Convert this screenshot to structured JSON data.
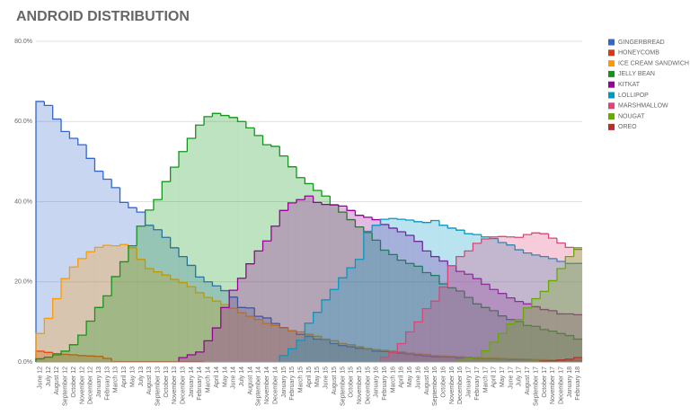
{
  "chart_data": {
    "type": "step-area",
    "title": "ANDROID DISTRIBUTION",
    "categories": [
      "June 12",
      "July 12",
      "August 12",
      "September 12",
      "October 12",
      "November 12",
      "December 12",
      "January 13",
      "February 13",
      "March 13",
      "April 13",
      "May 13",
      "July 13",
      "August 13",
      "September 13",
      "October 13",
      "November 13",
      "December 13",
      "January 14",
      "February 14",
      "March 14",
      "April 14",
      "May 14",
      "June 14",
      "July 14",
      "August 14",
      "September 14",
      "November 14",
      "December 14",
      "January 15",
      "February 15",
      "March 15",
      "April 15",
      "May 15",
      "June 15",
      "August 15",
      "September 15",
      "October 15",
      "November 15",
      "December 15",
      "January 16",
      "February 16",
      "March 16",
      "April 16",
      "May 16",
      "June 16",
      "August 16",
      "September 16",
      "October 16",
      "November 16",
      "December 16",
      "January 17",
      "February 17",
      "March 17",
      "April 17",
      "May 17",
      "June 17",
      "July 17",
      "August 17",
      "September 17",
      "October 17",
      "November 17",
      "December 17",
      "January 18",
      "February 18"
    ],
    "series": [
      {
        "name": "GINGERBREAD",
        "color": "#3366cc",
        "values": [
          65,
          64,
          60.6,
          57.5,
          55.8,
          54.2,
          50.8,
          47.6,
          45.6,
          43.5,
          39.8,
          38.5,
          37.4,
          34.1,
          33.0,
          31.1,
          28.5,
          26.3,
          24.1,
          21.2,
          20.0,
          19.0,
          17.8,
          16.2,
          13.6,
          13.5,
          11.4,
          11.0,
          9.6,
          8.6,
          7.8,
          6.9,
          6.4,
          5.7,
          5.6,
          4.6,
          4.1,
          3.8,
          3.4,
          3.3,
          2.7,
          2.6,
          2.4,
          2.2,
          2.0,
          1.7,
          1.5,
          1.3,
          1.3,
          1.2,
          1.0,
          1.0,
          0.9,
          0.8,
          0.8,
          0.7,
          0.6,
          0.6,
          0.5,
          0.5,
          0.4,
          0.4,
          0.3,
          0.3,
          0.3
        ]
      },
      {
        "name": "HONEYCOMB",
        "color": "#dc3912",
        "values": [
          2.7,
          2.4,
          2.1,
          1.9,
          1.8,
          1.6,
          1.5,
          1.4,
          0.9,
          0.1,
          0.1,
          0.1,
          0.1,
          0.1,
          0.1,
          0.1,
          0.1,
          0.1,
          0.1,
          0.1,
          null,
          null,
          null,
          null,
          null,
          null,
          null,
          null,
          null,
          null,
          null,
          null,
          null,
          null,
          null,
          null,
          null,
          null,
          null,
          null,
          null,
          null,
          null,
          null,
          null,
          null,
          null,
          null,
          null,
          null,
          null,
          null,
          null,
          null,
          null,
          null,
          null,
          null,
          null,
          null,
          null,
          null,
          null,
          null,
          null
        ]
      },
      {
        "name": "ICE CREAM SANDWICH",
        "color": "#ff9900",
        "values": [
          7.1,
          10.9,
          15.8,
          20.8,
          23.7,
          25.8,
          27.5,
          28.6,
          29.1,
          29.0,
          29.3,
          28.5,
          25.6,
          23.3,
          22.5,
          21.7,
          20.6,
          19.8,
          18.8,
          17.3,
          16.1,
          15.2,
          14.3,
          13.4,
          12.3,
          11.4,
          10.6,
          9.6,
          9.1,
          8.5,
          7.8,
          7.5,
          6.9,
          6.4,
          5.7,
          5.3,
          4.6,
          4.3,
          3.8,
          3.2,
          3.1,
          2.9,
          2.7,
          2.5,
          2.2,
          2.0,
          1.9,
          1.6,
          1.5,
          1.4,
          1.3,
          1.2,
          1.1,
          1.0,
          1.0,
          0.9,
          0.8,
          0.8,
          0.7,
          0.6,
          0.6,
          0.5,
          0.5,
          0.4,
          0.4
        ]
      },
      {
        "name": "JELLY BEAN",
        "color": "#109618",
        "values": [
          0.8,
          1.2,
          1.8,
          2.7,
          4.3,
          6.7,
          10.2,
          13.6,
          16.5,
          21.3,
          25.0,
          29.0,
          33.9,
          37.9,
          40.5,
          45.0,
          48.6,
          52.5,
          55.8,
          59.1,
          61.2,
          62.0,
          61.5,
          61.0,
          60.0,
          58.4,
          56.5,
          54.2,
          53.8,
          51.4,
          48.7,
          46.0,
          44.5,
          42.8,
          41.4,
          39.2,
          37.4,
          35.5,
          33.7,
          32.3,
          30.4,
          27.9,
          26.8,
          25.4,
          24.6,
          23.9,
          22.3,
          21.6,
          19.5,
          18.5,
          17.7,
          16.1,
          14.5,
          13.6,
          12.8,
          11.5,
          10.6,
          10.1,
          9.1,
          8.9,
          8.1,
          7.7,
          7.1,
          6.6,
          5.7
        ]
      },
      {
        "name": "KITKAT",
        "color": "#990099",
        "values": [
          null,
          null,
          null,
          null,
          null,
          null,
          null,
          null,
          null,
          null,
          null,
          null,
          null,
          null,
          null,
          null,
          null,
          1.1,
          1.8,
          2.5,
          5.3,
          8.5,
          13.6,
          17.9,
          20.9,
          24.5,
          27.7,
          30.2,
          33.9,
          37.8,
          39.7,
          40.5,
          41.4,
          39.8,
          39.3,
          39.2,
          38.9,
          37.8,
          36.6,
          36.1,
          35.5,
          34.3,
          33.4,
          32.5,
          31.6,
          30.1,
          27.7,
          26.3,
          25.2,
          24.0,
          22.6,
          21.9,
          20.8,
          19.4,
          18.1,
          17.1,
          16.0,
          15.1,
          14.5,
          13.8,
          13.1,
          12.8,
          12.0,
          12.0,
          11.8
        ]
      },
      {
        "name": "LOLLIPOP",
        "color": "#0099c6",
        "values": [
          null,
          null,
          null,
          null,
          null,
          null,
          null,
          null,
          null,
          null,
          null,
          null,
          null,
          null,
          null,
          null,
          null,
          null,
          null,
          null,
          null,
          null,
          null,
          null,
          null,
          null,
          null,
          null,
          null,
          1.6,
          3.3,
          5.4,
          9.7,
          12.4,
          15.5,
          18.1,
          21.0,
          23.5,
          25.6,
          32.6,
          34.1,
          35.6,
          35.8,
          35.6,
          35.4,
          35.0,
          34.8,
          35.3,
          34.1,
          33.4,
          32.9,
          32.0,
          31.8,
          31.2,
          30.8,
          29.8,
          29.2,
          28.0,
          27.2,
          26.7,
          26.3,
          25.8,
          25.1,
          24.6,
          24.6
        ]
      },
      {
        "name": "MARSHMALLOW",
        "color": "#dd4477",
        "values": [
          null,
          null,
          null,
          null,
          null,
          null,
          null,
          null,
          null,
          null,
          null,
          null,
          null,
          null,
          null,
          null,
          null,
          null,
          null,
          null,
          null,
          null,
          null,
          null,
          null,
          null,
          null,
          null,
          null,
          null,
          null,
          null,
          null,
          null,
          null,
          null,
          null,
          null,
          null,
          null,
          null,
          1.2,
          2.3,
          4.6,
          7.5,
          10.0,
          13.3,
          15.2,
          18.7,
          24.0,
          26.3,
          27.7,
          29.6,
          30.7,
          31.2,
          31.3,
          31.2,
          31.1,
          31.8,
          32.2,
          32.0,
          30.9,
          29.7,
          28.6,
          28.1
        ]
      },
      {
        "name": "NOUGAT",
        "color": "#66aa00",
        "values": [
          null,
          null,
          null,
          null,
          null,
          null,
          null,
          null,
          null,
          null,
          null,
          null,
          null,
          null,
          null,
          null,
          null,
          null,
          null,
          null,
          null,
          null,
          null,
          null,
          null,
          null,
          null,
          null,
          null,
          null,
          null,
          null,
          null,
          null,
          null,
          null,
          null,
          null,
          null,
          null,
          null,
          null,
          null,
          null,
          null,
          null,
          null,
          null,
          null,
          null,
          0.4,
          0.9,
          1.2,
          2.8,
          4.9,
          7.1,
          9.5,
          10.6,
          13.5,
          15.8,
          17.6,
          20.3,
          23.3,
          26.3,
          28.5
        ]
      },
      {
        "name": "OREO",
        "color": "#b82e2e",
        "values": [
          null,
          null,
          null,
          null,
          null,
          null,
          null,
          null,
          null,
          null,
          null,
          null,
          null,
          null,
          null,
          null,
          null,
          null,
          null,
          null,
          null,
          null,
          null,
          null,
          null,
          null,
          null,
          null,
          null,
          null,
          null,
          null,
          null,
          null,
          null,
          null,
          null,
          null,
          null,
          null,
          null,
          null,
          null,
          null,
          null,
          null,
          null,
          null,
          null,
          null,
          null,
          null,
          null,
          null,
          null,
          null,
          null,
          null,
          null,
          null,
          0.2,
          0.3,
          0.5,
          0.7,
          1.1
        ]
      }
    ],
    "ylim": [
      0,
      80
    ],
    "yticks": [
      {
        "value": 0,
        "label": "0.0%"
      },
      {
        "value": 20,
        "label": "20.0%"
      },
      {
        "value": 40,
        "label": "40.0%"
      },
      {
        "value": 60,
        "label": "60.0%"
      },
      {
        "value": 80,
        "label": "80.0%"
      }
    ],
    "grid": true,
    "legend": "right"
  }
}
